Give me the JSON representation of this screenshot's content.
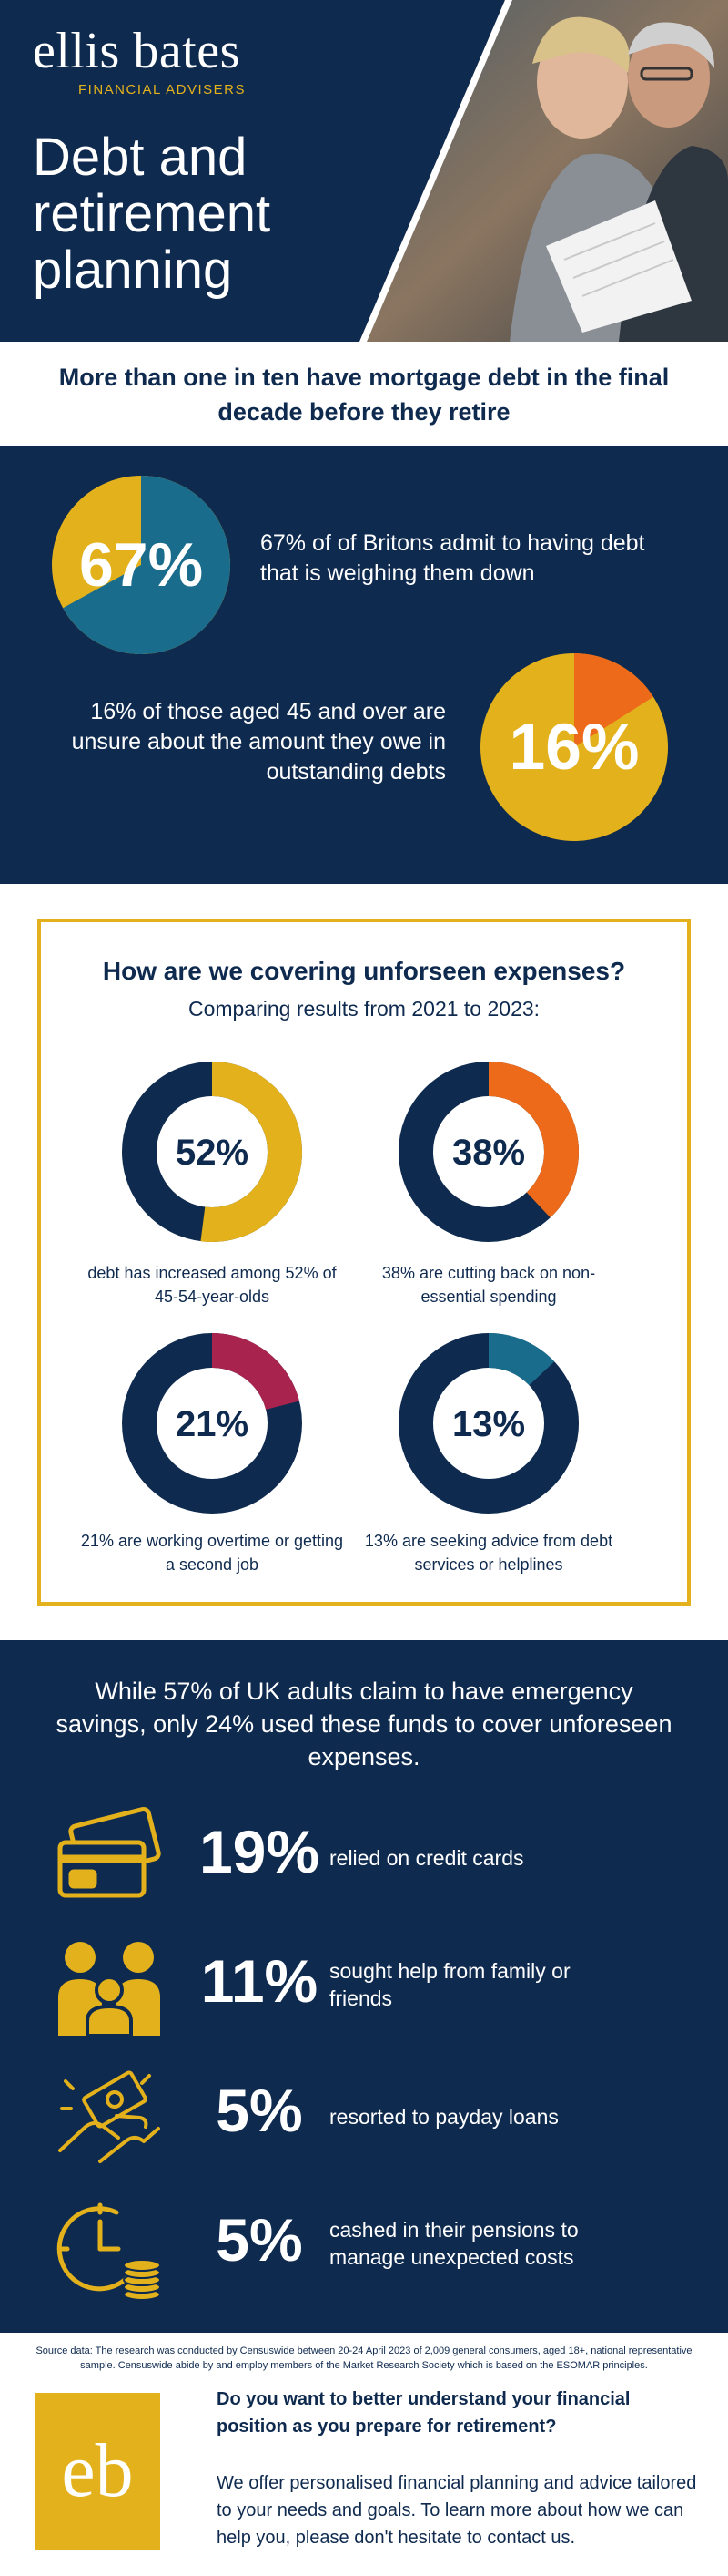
{
  "brand": {
    "name": "ellis bates",
    "subtitle": "FINANCIAL ADVISERS"
  },
  "hero": {
    "title": "Debt and retirement planning"
  },
  "headline": "More than one in ten have mortgage debt in the final decade before they retire",
  "stat_block": [
    {
      "value": 67,
      "label": "67%",
      "text": "67% of of Britons admit to having debt that is weighing them down",
      "colors": {
        "fill": "#1a6c8c",
        "rest": "#e3b11b"
      }
    },
    {
      "value": 16,
      "label": "16%",
      "text": "16% of those aged 45 and over are unsure about the amount they owe in outstanding debts",
      "colors": {
        "fill": "#ec6a1a",
        "rest": "#e3b11b"
      }
    }
  ],
  "expenses": {
    "title": "How are we covering unforseen expenses?",
    "subtitle": "Comparing results from 2021 to 2023:",
    "items": [
      {
        "value": 52,
        "label": "52%",
        "caption": "debt has increased among 52% of 45-54-year-olds",
        "color": "#e3b11b"
      },
      {
        "value": 38,
        "label": "38%",
        "caption": "38% are cutting back on non- essential spending",
        "color": "#ec6a1a"
      },
      {
        "value": 21,
        "label": "21%",
        "caption": "21% are working overtime or getting a second job",
        "color": "#a8244f"
      },
      {
        "value": 13,
        "label": "13%",
        "caption": "13% are seeking advice from debt services or helplines",
        "color": "#1a6c8c"
      }
    ]
  },
  "savings": {
    "heading": "While 57% of UK adults claim to have emergency savings, only 24% used these funds to cover unforeseen expenses.",
    "items": [
      {
        "icon": "credit-cards-icon",
        "label": "19%",
        "text": "relied on credit cards"
      },
      {
        "icon": "family-icon",
        "label": "11%",
        "text": "sought help from family or friends"
      },
      {
        "icon": "cash-hands-icon",
        "label": "5%",
        "text": "resorted to payday loans"
      },
      {
        "icon": "clock-coins-icon",
        "label": "5%",
        "text": "cashed in their pensions to manage unexpected costs"
      }
    ]
  },
  "footer": {
    "source": "Source data: The research was conducted by Censuswide between 20-24 April 2023 of 2,009 general consumers, aged 18+, national representative sample. Censuswide abide by and employ members of the Market Research Society which is based on the ESOMAR principles.",
    "logo": "eb",
    "question": "Do you want to better understand your financial position as you prepare for retirement?",
    "body": "We offer personalised financial planning and advice tailored to your needs and goals. To learn more about how we can help you, please don't hesitate to contact us."
  },
  "colors": {
    "navy": "#0f2a4f",
    "gold": "#e3b11b"
  }
}
